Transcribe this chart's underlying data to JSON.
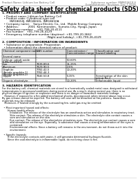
{
  "title": "Safety data sheet for chemical products (SDS)",
  "header_left": "Product Name: Lithium Ion Battery Cell",
  "header_right": "Substance number: MMBZ4619-V\nEstablishment / Revision: Dec.7.2016",
  "section1_title": "1. PRODUCT AND COMPANY IDENTIFICATION",
  "section1_lines": [
    "  • Product name: Lithium Ion Battery Cell",
    "  • Product code: Cylindrical-type cell",
    "         INR18650J, INR18650L, INR18650A",
    "  • Company name:    Sanyo Electric Co., Ltd.  Mobile Energy Company",
    "  • Address:           2001  Kamimonden,  Sumoto-City, Hyogo, Japan",
    "  • Telephone number:    +81-799-20-4111",
    "  • Fax number:   +81-799-26-4129",
    "  • Emergency telephone number (daytime): +81-799-20-3662",
    "                                                    (Night and holiday): +81-799-26-4129"
  ],
  "section2_title": "2. COMPOSITION / INFORMATION ON INGREDIENTS",
  "section2_intro": "  • Substance or preparation: Preparation",
  "section2_sub": "  • Information about the chemical nature of product:",
  "table_headers": [
    "Chemical component name",
    "CAS number",
    "Concentration /\nConcentration range",
    "Classification and\nhazard labeling"
  ],
  "section3_title": "3. HAZARDS IDENTIFICATION",
  "section3_text": [
    "For the battery cell, chemical materials are stored in a hermetically sealed metal case, designed to withstand",
    "temperatures in processes/conditions during normal use. As a result, during normal use, there is no",
    "physical danger of ignition or explosion and there is no danger of hazardous materials leakage.",
    "   However, if exposed to a fire added mechanical shocks, decomposed, when internal abuse may occur.",
    "By gas release cannot be expelled. The battery cell case will be breached at fire patterns, hazardous",
    "materials may be released.",
    "   Moreover, if heated strongly by the surrounding fire, solid gas may be emitted.",
    "",
    "  • Most important hazard and effects:",
    "       Human health effects:",
    "          Inhalation: The release of the electrolyte has an anesthesia action and stimulates in respiratory tract.",
    "          Skin contact: The release of the electrolyte stimulates a skin. The electrolyte skin contact causes a",
    "          sore and stimulation on the skin.",
    "          Eye contact: The release of the electrolyte stimulates eyes. The electrolyte eye contact causes a sore",
    "          and stimulation on the eye. Especially, a substance that causes a strong inflammation of the eyes is",
    "          contained.",
    "          Environmental effects: Since a battery cell remains in the environment, do not throw out it into the",
    "          environment.",
    "",
    "  • Specific hazards:",
    "       If the electrolyte contacts with water, it will generate detrimental hydrogen fluoride.",
    "       Since the said electrolyte is inflammable liquid, do not bring close to fire."
  ],
  "bg_color": "#ffffff",
  "text_color": "#000000",
  "title_fontsize": 5.5,
  "body_fontsize": 3.0,
  "header_fontsize": 2.8,
  "section_title_fontsize": 3.2,
  "table_fontsize": 2.7
}
